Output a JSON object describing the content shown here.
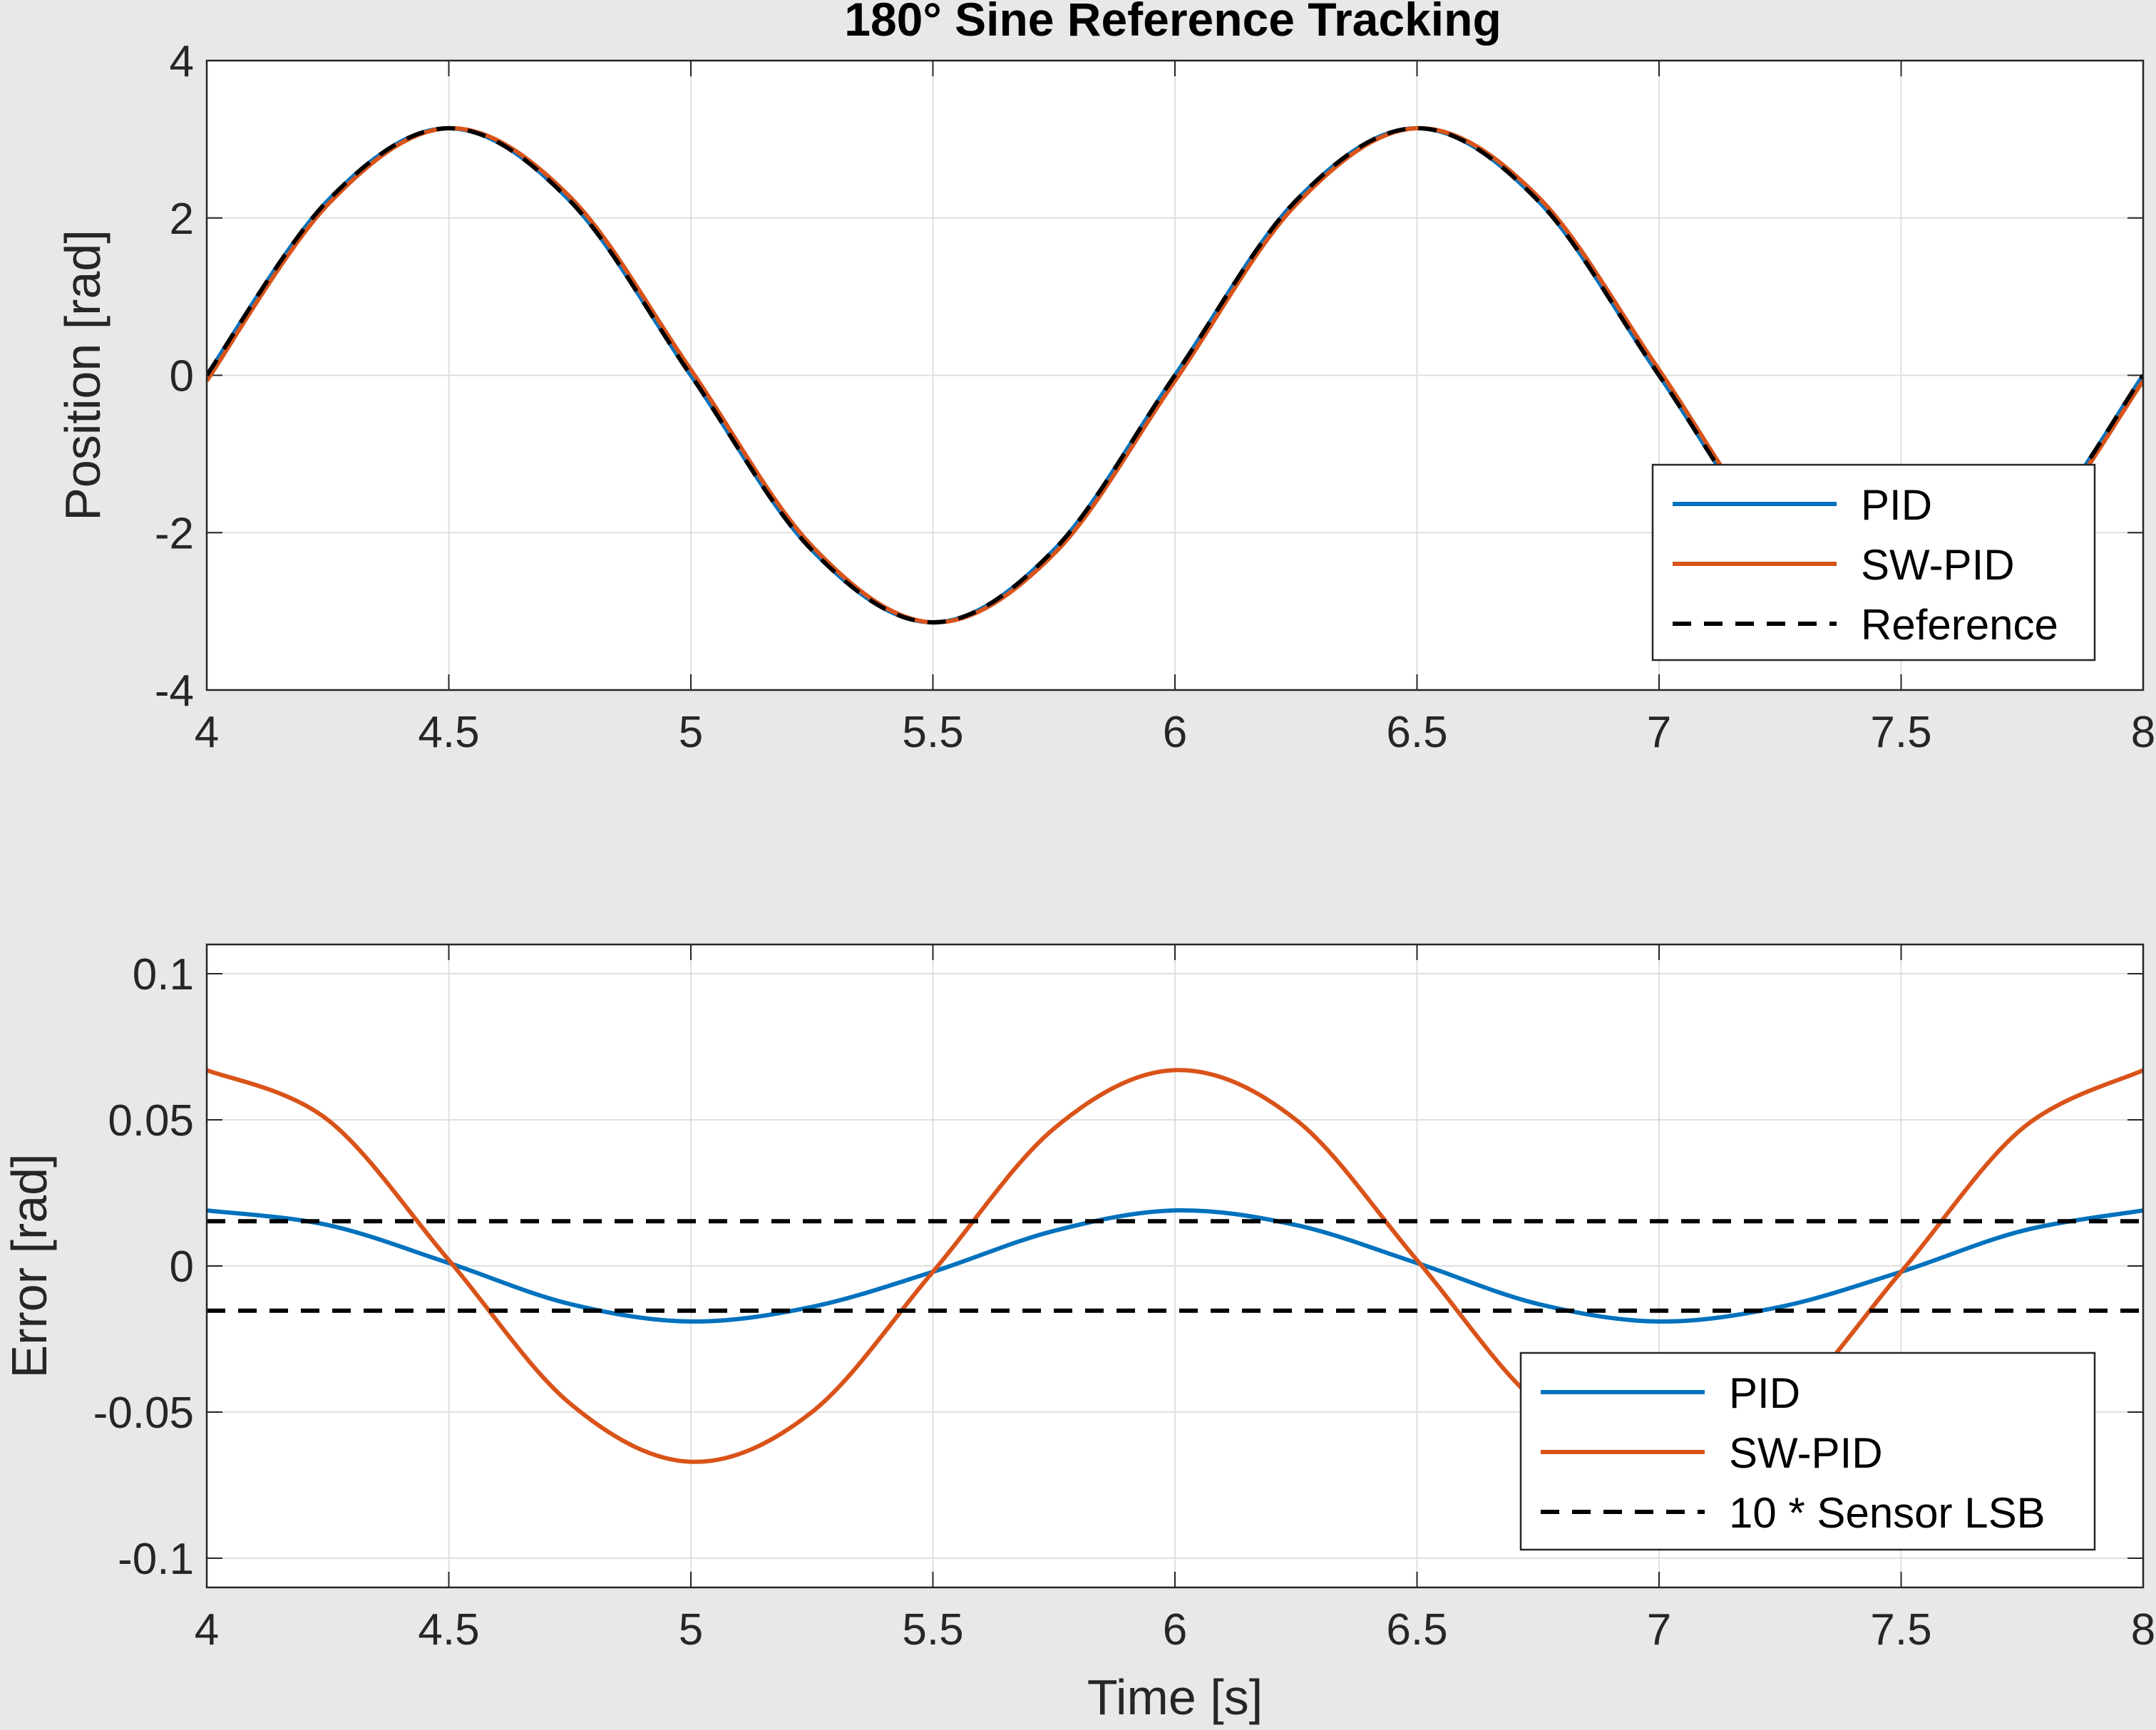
{
  "figure": {
    "background": "#e8e8e8"
  },
  "colors": {
    "pid": "#0072bd",
    "swpid": "#d95319",
    "reference": "#000000",
    "grid": "#dfdfdf",
    "axes": "#262626"
  },
  "chart_data": [
    {
      "type": "line",
      "title": "180° Sine Reference Tracking",
      "xlabel": "",
      "ylabel": "Position [rad]",
      "xlim": [
        4,
        8
      ],
      "ylim": [
        -4,
        4
      ],
      "xticks": [
        "4",
        "4.5",
        "5",
        "5.5",
        "6",
        "6.5",
        "7",
        "7.5",
        "8"
      ],
      "yticks": [
        "-4",
        "-2",
        "0",
        "2",
        "4"
      ],
      "grid": true,
      "legend": {
        "location": "bottom-right",
        "entries": [
          "PID",
          "SW-PID",
          "Reference"
        ]
      },
      "series": [
        {
          "name": "PID",
          "color": "#0072bd",
          "style": "solid",
          "x": [
            4,
            4.25,
            4.5,
            4.75,
            5,
            5.25,
            5.5,
            5.75,
            6,
            6.25,
            6.5,
            6.75,
            7,
            7.25,
            7.5,
            7.75,
            8
          ],
          "y": [
            0,
            2.22,
            3.14,
            2.22,
            0,
            -2.22,
            -3.14,
            -2.22,
            0,
            2.22,
            3.14,
            2.22,
            0,
            -2.22,
            -3.14,
            -2.22,
            0
          ]
        },
        {
          "name": "SW-PID",
          "color": "#d95319",
          "style": "solid",
          "x": [
            4,
            4.25,
            4.5,
            4.75,
            5,
            5.25,
            5.5,
            5.75,
            6,
            6.25,
            6.5,
            6.75,
            7,
            7.25,
            7.5,
            7.75,
            8
          ],
          "y": [
            -0.07,
            2.17,
            3.14,
            2.27,
            0.07,
            -2.17,
            -3.14,
            -2.27,
            -0.07,
            2.17,
            3.14,
            2.27,
            0.07,
            -2.17,
            -3.14,
            -2.27,
            -0.07
          ]
        },
        {
          "name": "Reference",
          "color": "#000000",
          "style": "dashed",
          "x": [
            4,
            4.25,
            4.5,
            4.75,
            5,
            5.25,
            5.5,
            5.75,
            6,
            6.25,
            6.5,
            6.75,
            7,
            7.25,
            7.5,
            7.75,
            8
          ],
          "y": [
            0,
            2.22,
            3.14,
            2.22,
            0,
            -2.22,
            -3.14,
            -2.22,
            0,
            2.22,
            3.14,
            2.22,
            0,
            -2.22,
            -3.14,
            -2.22,
            0
          ]
        }
      ]
    },
    {
      "type": "line",
      "title": "",
      "xlabel": "Time [s]",
      "ylabel": "Error [rad]",
      "xlim": [
        4,
        8
      ],
      "ylim": [
        -0.11,
        0.11
      ],
      "xticks": [
        "4",
        "4.5",
        "5",
        "5.5",
        "6",
        "6.5",
        "7",
        "7.5",
        "8"
      ],
      "yticks": [
        "-0.1",
        "-0.05",
        "0",
        "0.05",
        "0.1"
      ],
      "grid": true,
      "legend": {
        "location": "bottom-right",
        "entries": [
          "PID",
          "SW-PID",
          "10 * Sensor LSB"
        ]
      },
      "series": [
        {
          "name": "PID",
          "color": "#0072bd",
          "style": "solid",
          "x": [
            4,
            4.25,
            4.5,
            4.75,
            5,
            5.25,
            5.5,
            5.75,
            6,
            6.25,
            6.5,
            6.75,
            7,
            7.25,
            7.5,
            7.75,
            8
          ],
          "y": [
            0.019,
            0.014,
            0.001,
            -0.013,
            -0.019,
            -0.014,
            -0.002,
            0.012,
            0.019,
            0.014,
            0.001,
            -0.013,
            -0.019,
            -0.014,
            -0.002,
            0.012,
            0.019
          ]
        },
        {
          "name": "SW-PID",
          "color": "#d95319",
          "style": "solid",
          "x": [
            4,
            4.25,
            4.5,
            4.75,
            5,
            5.25,
            5.5,
            5.75,
            6,
            6.25,
            6.5,
            6.75,
            7,
            7.25,
            7.5,
            7.75,
            8
          ],
          "y": [
            0.067,
            0.05,
            0.002,
            -0.047,
            -0.067,
            -0.05,
            -0.002,
            0.047,
            0.067,
            0.05,
            0.002,
            -0.047,
            -0.067,
            -0.05,
            -0.002,
            0.047,
            0.067
          ]
        },
        {
          "name": "10 * Sensor LSB",
          "color": "#000000",
          "style": "dashed",
          "x": [
            4,
            8
          ],
          "y": [
            0.0153,
            0.0153
          ]
        },
        {
          "name": "",
          "color": "#000000",
          "style": "dashed",
          "x": [
            4,
            8
          ],
          "y": [
            -0.0153,
            -0.0153
          ]
        }
      ]
    }
  ]
}
